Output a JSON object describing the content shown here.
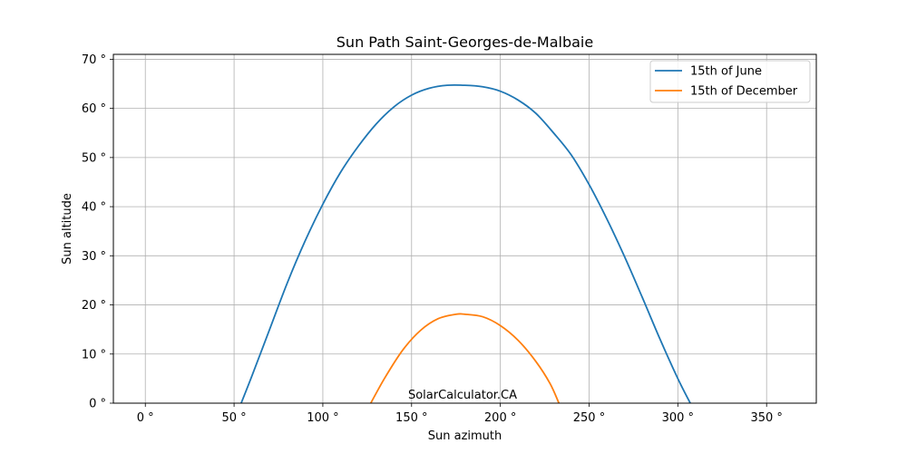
{
  "chart_data": {
    "type": "line",
    "title": "Sun Path Saint-Georges-de-Malbaie",
    "xlabel": "Sun azimuth",
    "ylabel": "Sun altitude",
    "xlim": [
      -18,
      378
    ],
    "ylim": [
      0,
      71
    ],
    "xticks": [
      {
        "value": 0,
        "label": "0 °"
      },
      {
        "value": 50,
        "label": "50 °"
      },
      {
        "value": 100,
        "label": "100 °"
      },
      {
        "value": 150,
        "label": "150 °"
      },
      {
        "value": 200,
        "label": "200 °"
      },
      {
        "value": 250,
        "label": "250 °"
      },
      {
        "value": 300,
        "label": "300 °"
      },
      {
        "value": 350,
        "label": "350 °"
      }
    ],
    "yticks": [
      {
        "value": 0,
        "label": "0 °"
      },
      {
        "value": 10,
        "label": "10 °"
      },
      {
        "value": 20,
        "label": "20 °"
      },
      {
        "value": 30,
        "label": "30 °"
      },
      {
        "value": 40,
        "label": "40 °"
      },
      {
        "value": 50,
        "label": "50 °"
      },
      {
        "value": 60,
        "label": "60 °"
      },
      {
        "value": 70,
        "label": "70 °"
      }
    ],
    "grid": true,
    "legend_position": "top-right",
    "annotation": "SolarCalculator.CA",
    "series": [
      {
        "name": "15th of June",
        "color": "#1f77b4",
        "points": [
          [
            54,
            0
          ],
          [
            60,
            5.5
          ],
          [
            70,
            15
          ],
          [
            80,
            24.5
          ],
          [
            90,
            33
          ],
          [
            100,
            40.5
          ],
          [
            110,
            47
          ],
          [
            120,
            52.3
          ],
          [
            130,
            56.8
          ],
          [
            140,
            60.3
          ],
          [
            150,
            62.7
          ],
          [
            160,
            64.1
          ],
          [
            170,
            64.7
          ],
          [
            180,
            64.7
          ],
          [
            190,
            64.4
          ],
          [
            200,
            63.5
          ],
          [
            210,
            61.7
          ],
          [
            220,
            59
          ],
          [
            230,
            55
          ],
          [
            240,
            50.5
          ],
          [
            250,
            44.5
          ],
          [
            260,
            37.5
          ],
          [
            270,
            29.8
          ],
          [
            280,
            21.5
          ],
          [
            290,
            13
          ],
          [
            300,
            5
          ],
          [
            307,
            0
          ]
        ]
      },
      {
        "name": "15th of December",
        "color": "#ff7f0e",
        "points": [
          [
            127,
            0
          ],
          [
            135,
            5.2
          ],
          [
            145,
            10.8
          ],
          [
            155,
            14.8
          ],
          [
            165,
            17.2
          ],
          [
            175,
            18.1
          ],
          [
            180,
            18.1
          ],
          [
            190,
            17.6
          ],
          [
            200,
            15.8
          ],
          [
            210,
            12.8
          ],
          [
            220,
            8.5
          ],
          [
            228,
            4
          ],
          [
            233,
            0
          ]
        ]
      }
    ]
  }
}
